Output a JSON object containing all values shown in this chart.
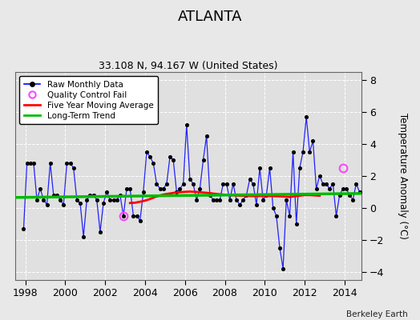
{
  "title": "ATLANTA",
  "subtitle": "33.108 N, 94.167 W (United States)",
  "ylabel": "Temperature Anomaly (°C)",
  "footer": "Berkeley Earth",
  "xlim": [
    1997.5,
    2014.83
  ],
  "ylim": [
    -4.5,
    8.5
  ],
  "yticks": [
    -4,
    -2,
    0,
    2,
    4,
    6,
    8
  ],
  "xticks": [
    1998,
    2000,
    2002,
    2004,
    2006,
    2008,
    2010,
    2012,
    2014
  ],
  "fig_color": "#e8e8e8",
  "plot_bg_color": "#e0e0e0",
  "raw_color": "#0000ff",
  "raw_dot_color": "#000000",
  "ma_color": "#ff0000",
  "trend_color": "#00bb00",
  "qc_color": "#ff44ff",
  "raw_data": [
    1997.917,
    -1.3,
    1998.083,
    2.8,
    1998.25,
    2.8,
    1998.417,
    2.8,
    1998.583,
    0.5,
    1998.75,
    1.2,
    1998.917,
    0.5,
    1999.083,
    0.2,
    1999.25,
    2.8,
    1999.417,
    0.8,
    1999.583,
    0.8,
    1999.75,
    0.5,
    1999.917,
    0.2,
    2000.083,
    2.8,
    2000.25,
    2.8,
    2000.417,
    2.5,
    2000.583,
    0.5,
    2000.75,
    0.3,
    2000.917,
    -1.8,
    2001.083,
    0.5,
    2001.25,
    0.8,
    2001.417,
    0.8,
    2001.583,
    0.5,
    2001.75,
    -1.5,
    2001.917,
    0.3,
    2002.083,
    1.0,
    2002.25,
    0.5,
    2002.417,
    0.5,
    2002.583,
    0.5,
    2002.75,
    0.8,
    2002.917,
    -0.5,
    2003.083,
    1.2,
    2003.25,
    1.2,
    2003.417,
    -0.5,
    2003.583,
    -0.5,
    2003.75,
    -0.8,
    2003.917,
    1.0,
    2004.083,
    3.5,
    2004.25,
    3.2,
    2004.417,
    2.8,
    2004.583,
    1.5,
    2004.75,
    1.2,
    2004.917,
    1.2,
    2005.083,
    1.5,
    2005.25,
    3.2,
    2005.417,
    3.0,
    2005.583,
    1.0,
    2005.75,
    1.2,
    2005.917,
    1.5,
    2006.083,
    5.2,
    2006.25,
    1.8,
    2006.417,
    1.5,
    2006.583,
    0.5,
    2006.75,
    1.2,
    2006.917,
    3.0,
    2007.083,
    4.5,
    2007.25,
    0.8,
    2007.417,
    0.5,
    2007.583,
    0.5,
    2007.75,
    0.5,
    2007.917,
    1.5,
    2008.083,
    1.5,
    2008.25,
    0.5,
    2008.417,
    1.5,
    2008.583,
    0.5,
    2008.75,
    0.2,
    2008.917,
    0.5,
    2009.083,
    0.8,
    2009.25,
    1.8,
    2009.417,
    1.5,
    2009.583,
    0.2,
    2009.75,
    2.5,
    2009.917,
    0.5,
    2010.083,
    0.8,
    2010.25,
    2.5,
    2010.417,
    0.0,
    2010.583,
    -0.5,
    2010.75,
    -2.5,
    2010.917,
    -3.8,
    2011.083,
    0.5,
    2011.25,
    -0.5,
    2011.417,
    3.5,
    2011.583,
    -1.0,
    2011.75,
    2.5,
    2011.917,
    3.5,
    2012.083,
    5.7,
    2012.25,
    3.5,
    2012.417,
    4.2,
    2012.583,
    1.2,
    2012.75,
    2.0,
    2012.917,
    1.5,
    2013.083,
    1.5,
    2013.25,
    1.2,
    2013.417,
    1.5,
    2013.583,
    -0.5,
    2013.75,
    0.8,
    2013.917,
    1.2,
    2014.083,
    1.2,
    2014.25,
    0.8,
    2014.417,
    0.5,
    2014.583,
    1.5,
    2014.75,
    1.0
  ],
  "qc_points": [
    [
      2002.917,
      -0.5
    ],
    [
      2013.917,
      2.5
    ]
  ],
  "trend_x": [
    1997.5,
    2014.83
  ],
  "trend_y": [
    0.65,
    0.9
  ],
  "ma_data": [
    2003.25,
    0.3,
    2003.5,
    0.32,
    2003.75,
    0.38,
    2004.0,
    0.45,
    2004.25,
    0.55,
    2004.5,
    0.68,
    2004.75,
    0.78,
    2005.0,
    0.85,
    2005.25,
    0.9,
    2005.5,
    0.95,
    2005.75,
    0.98,
    2006.0,
    1.0,
    2006.25,
    1.02,
    2006.5,
    1.0,
    2006.75,
    0.98,
    2007.0,
    0.95,
    2007.25,
    0.92,
    2007.5,
    0.88,
    2007.75,
    0.85,
    2008.0,
    0.82,
    2008.25,
    0.8,
    2008.5,
    0.78,
    2008.75,
    0.76,
    2009.0,
    0.75,
    2009.25,
    0.74,
    2009.5,
    0.73,
    2009.75,
    0.74,
    2010.0,
    0.75,
    2010.25,
    0.74,
    2010.5,
    0.73,
    2010.75,
    0.72,
    2011.0,
    0.7,
    2011.25,
    0.68,
    2011.5,
    0.72,
    2011.75,
    0.76,
    2012.0,
    0.8,
    2012.25,
    0.8,
    2012.5,
    0.78,
    2012.75,
    0.76
  ]
}
